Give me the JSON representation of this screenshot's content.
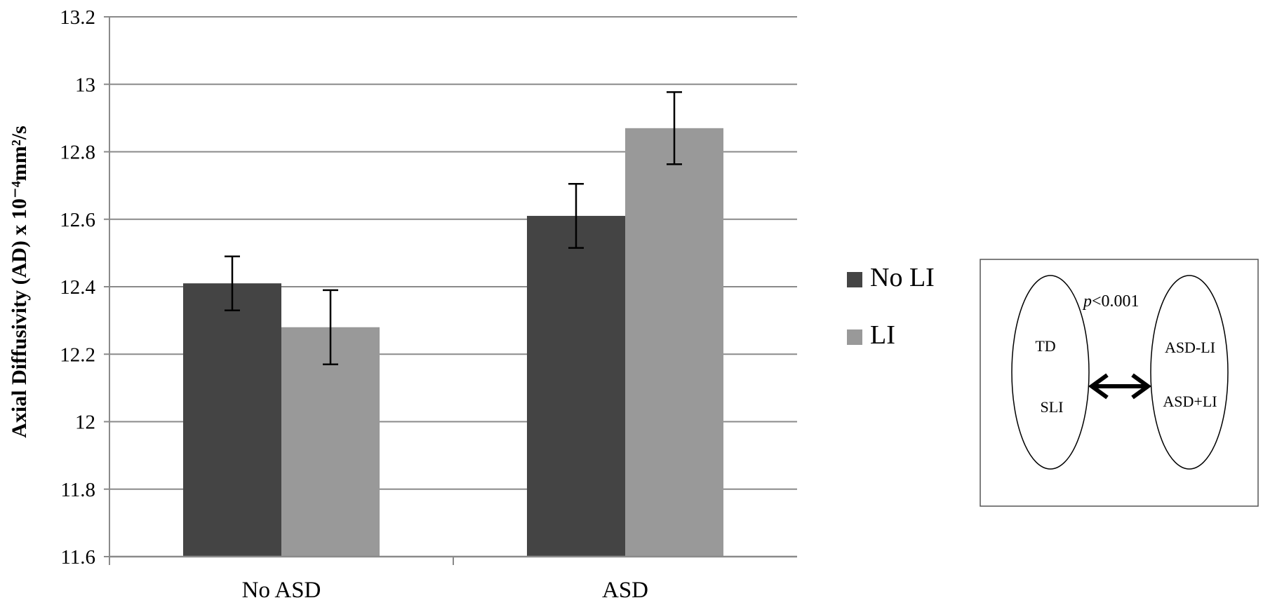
{
  "chart_data": {
    "type": "bar",
    "title": "",
    "xlabel": "",
    "ylabel": "Axial Diffusivity (AD) x 10⁻⁴mm²/s",
    "ylim": [
      11.6,
      13.2
    ],
    "yticks": [
      "11.6",
      "11.8",
      "12",
      "12.2",
      "12.4",
      "12.6",
      "12.8",
      "13",
      "13.2"
    ],
    "grid": true,
    "legend_position": "right",
    "categories": [
      "No ASD",
      "ASD"
    ],
    "series": [
      {
        "name": "No LI",
        "color": "#444444",
        "values": [
          12.41,
          12.61
        ],
        "errors": [
          0.08,
          0.095
        ]
      },
      {
        "name": "LI",
        "color": "#999999",
        "values": [
          12.28,
          12.87
        ],
        "errors": [
          0.11,
          0.107
        ]
      }
    ]
  },
  "inset": {
    "p_italic": "p",
    "p_rest": "<0.001",
    "left_group": [
      "TD",
      "SLI"
    ],
    "right_group": [
      "ASD-LI",
      "ASD+LI"
    ]
  }
}
